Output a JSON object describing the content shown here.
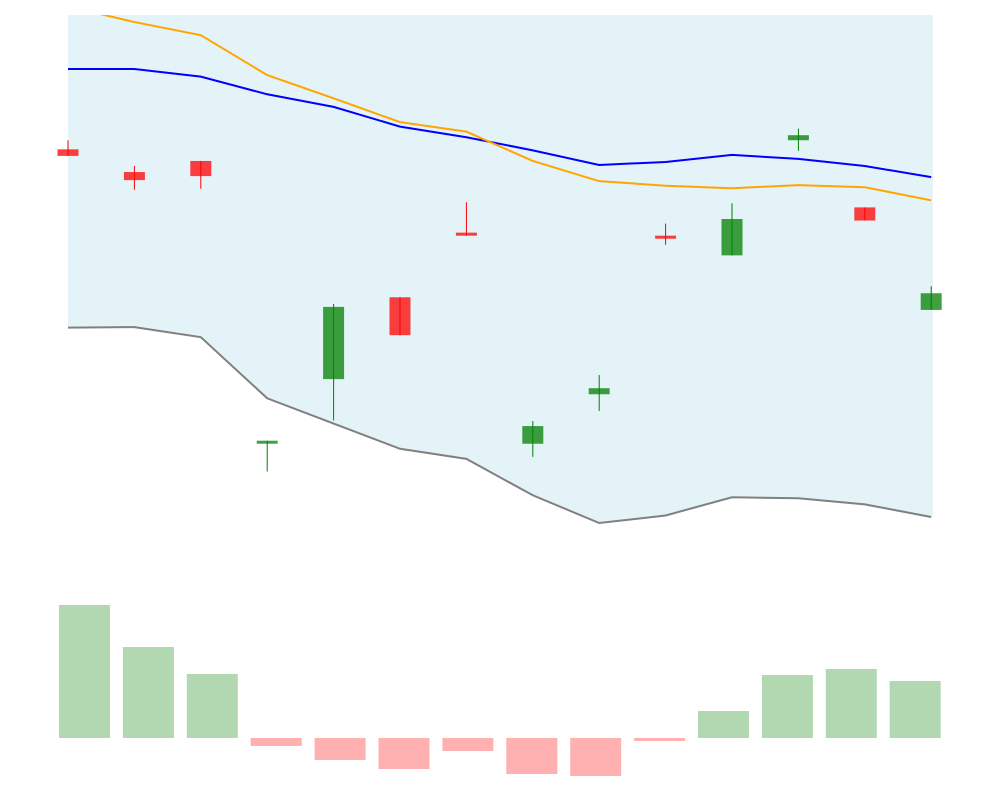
{
  "chart_data": [
    {
      "type": "candlestick",
      "title": "",
      "xlabel": "",
      "ylabel": "",
      "ylim": [
        0,
        100
      ],
      "grid": false,
      "band": {
        "fill": "#e3f3f8",
        "upper": [
          103.3,
          103.3,
          103.3,
          103.3,
          103.3,
          103.3,
          103.3,
          103.3,
          103.3,
          103.3,
          103.3,
          103.3,
          103.3,
          103.3
        ],
        "lower": [
          38.1,
          38.2,
          36.2,
          24.1,
          19.1,
          14.1,
          12.1,
          4.9,
          -0.6,
          0.9,
          4.5,
          4.3,
          3.1,
          0.6
        ]
      },
      "candles": [
        {
          "open": 73.4,
          "high": 75.2,
          "low": 72.1,
          "close": 72.1
        },
        {
          "open": 68.9,
          "high": 70.1,
          "low": 65.4,
          "close": 67.3
        },
        {
          "open": 71.1,
          "high": 71.1,
          "low": 65.6,
          "close": 68.1
        },
        {
          "open": 15.7,
          "high": 15.7,
          "low": 9.6,
          "close": 15.7
        },
        {
          "open": 27.9,
          "high": 42.8,
          "low": 19.7,
          "close": 42.2
        },
        {
          "open": 44.1,
          "high": 44.1,
          "low": 36.6,
          "close": 36.6
        },
        {
          "open": 56.9,
          "high": 62.9,
          "low": 56.3,
          "close": 56.3
        },
        {
          "open": 15.1,
          "high": 19.6,
          "low": 12.5,
          "close": 18.6
        },
        {
          "open": 24.9,
          "high": 28.7,
          "low": 21.6,
          "close": 26.1
        },
        {
          "open": 56.3,
          "high": 58.7,
          "low": 54.5,
          "close": 55.7
        },
        {
          "open": 52.4,
          "high": 62.7,
          "low": 52.4,
          "close": 59.6
        },
        {
          "open": 75.2,
          "high": 77.5,
          "low": 73.1,
          "close": 76.2
        },
        {
          "open": 61.9,
          "high": 61.9,
          "low": 59.3,
          "close": 59.3
        },
        {
          "open": 41.6,
          "high": 46.3,
          "low": 41.6,
          "close": 44.9
        }
      ],
      "lines": [
        {
          "color": "#0000ff",
          "values": [
            89.3,
            89.3,
            87.8,
            84.3,
            81.8,
            77.9,
            75.8,
            73.2,
            70.3,
            70.9,
            72.3,
            71.5,
            70.1,
            67.9
          ]
        },
        {
          "color": "#ffa500",
          "values": [
            101.7,
            98.6,
            96.0,
            88.1,
            83.5,
            78.8,
            76.9,
            71.1,
            67.1,
            66.2,
            65.7,
            66.3,
            65.9,
            63.3
          ]
        },
        {
          "color": "#808080",
          "values": [
            38.1,
            38.2,
            36.2,
            24.1,
            19.1,
            14.1,
            12.1,
            4.9,
            -0.6,
            0.9,
            4.5,
            4.3,
            3.1,
            0.6
          ]
        }
      ],
      "colors": {
        "up": "#008000",
        "down": "#ff0000",
        "body_opacity": 0.75
      }
    },
    {
      "type": "bar",
      "title": "",
      "xlabel": "",
      "ylabel": "",
      "ylim": [
        -4,
        14
      ],
      "values": [
        13.3,
        9.1,
        6.4,
        -0.8,
        -2.2,
        -3.1,
        -1.3,
        -3.6,
        -3.8,
        -0.3,
        2.7,
        6.3,
        6.9,
        5.7
      ],
      "colors": {
        "positive": "#b1d8b1",
        "negative": "#ffb1b1"
      }
    }
  ]
}
